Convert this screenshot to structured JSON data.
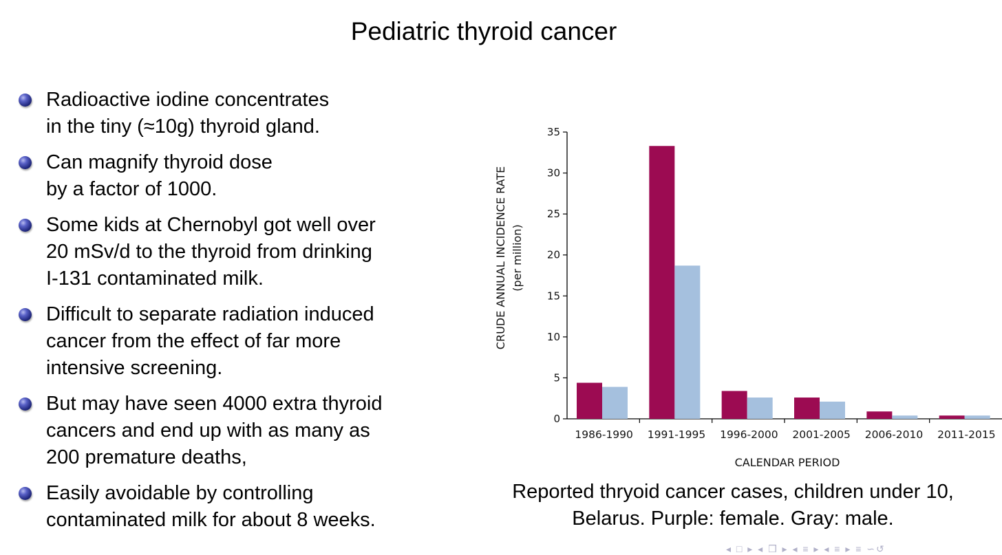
{
  "slide": {
    "title": "Pediatric thyroid cancer"
  },
  "bullets": [
    {
      "lines": [
        "Radioactive iodine concentrates",
        "in the tiny (≈10g) thyroid gland."
      ]
    },
    {
      "lines": [
        "Can magnify thyroid dose",
        "by a factor of 1000."
      ]
    },
    {
      "lines": [
        "Some kids at Chernobyl got well over",
        "20 mSv/d to the thyroid from drinking",
        "I-131 contaminated milk."
      ]
    },
    {
      "lines": [
        "Difficult to separate radiation induced",
        "cancer from the effect of far more",
        "intensive screening."
      ]
    },
    {
      "lines": [
        "But may have seen 4000 extra thyroid",
        "cancers and end up with as many as",
        "200 premature deaths,"
      ]
    },
    {
      "lines": [
        "Easily avoidable by controlling",
        "contaminated milk for about 8 weeks."
      ]
    }
  ],
  "chart_data": {
    "type": "bar",
    "title": "",
    "xlabel": "CALENDAR PERIOD",
    "ylabel": "CRUDE ANNUAL INCIDENCE RATE",
    "ylabel_sub": "(per million)",
    "categories": [
      "1986-1990",
      "1991-1995",
      "1996-2000",
      "2001-2005",
      "2006-2010",
      "2011-2015"
    ],
    "series": [
      {
        "name": "female",
        "color": "#9c0b52",
        "values": [
          4.4,
          33.3,
          3.4,
          2.6,
          0.9,
          0.4
        ]
      },
      {
        "name": "male",
        "color": "#a5c0de",
        "values": [
          3.9,
          18.7,
          2.6,
          2.1,
          0.4,
          0.4
        ]
      }
    ],
    "ylim": [
      0,
      35
    ],
    "yticks": [
      0,
      5,
      10,
      15,
      20,
      25,
      30,
      35
    ],
    "grid": false,
    "legend": "none"
  },
  "caption": {
    "line1": "Reported thryoid cancer cases, children under 10,",
    "line2": "Belarus. Purple: female. Gray: male."
  },
  "nav": {
    "symbols": "◂ □ ▸ ◂ ❒ ▸ ◂ ≡ ▸ ◂ ≡ ▸ ≡ ∽↺"
  }
}
